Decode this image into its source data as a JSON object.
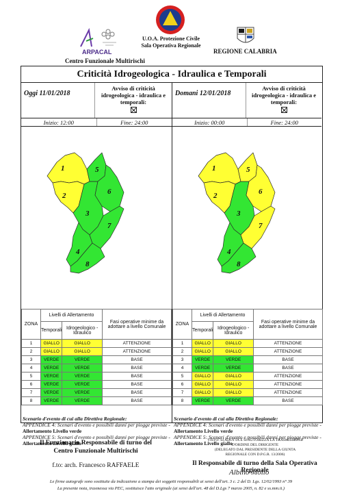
{
  "header": {
    "arpacal": "ARPACAL",
    "centro": "Centro Funzionale Multirischi",
    "uoa_line1": "U.O.A. Protezione Civile",
    "uoa_line2": "Sala Operativa Regionale",
    "regione": "REGIONE CALABRIA"
  },
  "title": "Criticità Idrogeologica - Idraulica e Temporali",
  "days": [
    {
      "label": "Oggi 11/01/2018",
      "avviso": "Avviso di criticità idrogeologica - idraulica e temporali:",
      "start": "Inizio: 12:00",
      "end": "Fine: 24:00",
      "zone_colors": {
        "1": "giallo",
        "2": "giallo",
        "3": "verde",
        "4": "verde",
        "5": "verde",
        "6": "verde",
        "7": "verde",
        "8": "verde"
      }
    },
    {
      "label": "Domani 12/01/2018",
      "avviso": "Avviso di criticità idrogeologica - idraulica e temporali:",
      "start": "Inizio: 00:00",
      "end": "Fine: 24:00",
      "zone_colors": {
        "1": "giallo",
        "2": "giallo",
        "3": "verde",
        "4": "verde",
        "5": "giallo",
        "6": "giallo",
        "7": "giallo",
        "8": "verde"
      }
    }
  ],
  "table_headers": {
    "zona": "ZONA",
    "livelli": "Livelli di Allertamento",
    "fasi": "Fasi operative minime da adottare a livello Comunale",
    "temporali": "Temporali",
    "idro": "Idrogeologico - Idraulico"
  },
  "colors": {
    "giallo": "#ffff33",
    "verde": "#33e633"
  },
  "tables": [
    [
      {
        "zona": "1",
        "temporali": "GIALLO",
        "idro": "GIALLO",
        "fase": "ATTENZIONE"
      },
      {
        "zona": "2",
        "temporali": "GIALLO",
        "idro": "GIALLO",
        "fase": "ATTENZIONE"
      },
      {
        "zona": "3",
        "temporali": "VERDE",
        "idro": "VERDE",
        "fase": "BASE"
      },
      {
        "zona": "4",
        "temporali": "VERDE",
        "idro": "VERDE",
        "fase": "BASE"
      },
      {
        "zona": "5",
        "temporali": "VERDE",
        "idro": "VERDE",
        "fase": "BASE"
      },
      {
        "zona": "6",
        "temporali": "VERDE",
        "idro": "VERDE",
        "fase": "BASE"
      },
      {
        "zona": "7",
        "temporali": "VERDE",
        "idro": "VERDE",
        "fase": "BASE"
      },
      {
        "zona": "8",
        "temporali": "VERDE",
        "idro": "VERDE",
        "fase": "BASE"
      }
    ],
    [
      {
        "zona": "1",
        "temporali": "GIALLO",
        "idro": "GIALLO",
        "fase": "ATTENZIONE"
      },
      {
        "zona": "2",
        "temporali": "GIALLO",
        "idro": "GIALLO",
        "fase": "ATTENZIONE"
      },
      {
        "zona": "3",
        "temporali": "VERDE",
        "idro": "VERDE",
        "fase": "BASE"
      },
      {
        "zona": "4",
        "temporali": "VERDE",
        "idro": "VERDE",
        "fase": "BASE"
      },
      {
        "zona": "5",
        "temporali": "GIALLO",
        "idro": "GIALLO",
        "fase": "ATTENZIONE"
      },
      {
        "zona": "6",
        "temporali": "GIALLO",
        "idro": "GIALLO",
        "fase": "ATTENZIONE"
      },
      {
        "zona": "7",
        "temporali": "GIALLO",
        "idro": "GIALLO",
        "fase": "ATTENZIONE"
      },
      {
        "zona": "8",
        "temporali": "VERDE",
        "idro": "VERDE",
        "fase": "BASE"
      }
    ]
  ],
  "scenario": {
    "title": "Scenario d'evento di cui alla Direttiva Regionale:",
    "app4": "APPENDICE 4: Scenari d'evento e possibili danni per piogge previste -",
    "app4_level": "Allertamento Livello verde",
    "app5": "APPENDICE 5: Scenari d'evento e possibili danni per piogge previste -",
    "app5_level": "Allertamento Livello giallo"
  },
  "footer": {
    "left_line1": "Il Funzionario Responsabile di turno del",
    "left_line2": "Centro Funzionale Multirischi",
    "left_fto": "f.to: arch. Francesco RAFFAELE",
    "right_small1": "VISTO: SI ADOTTA E SI AUTORIZZA LA TRASMISSIONE",
    "right_small2": "D'ORDINE DEL DIRIGENTE",
    "right_small3": "(DELEGATO DAL PRESIDENTE DELLA GIUNTA",
    "right_small4": "REGIONALE CON D.P.G.R. 13/2006)",
    "right_main": "Il Responsabile di turno della Sala Operativa Regionale",
    "signature": "Albino Mollo",
    "note1": "Le firme autografe sono sostituite da indicazione a stampa dei soggetti responsabili ai sensi dell'art. 3 c. 2 del D. Lgs. 12/02/1993 n° 39",
    "note2": "La presente nota, trasmessa via PEC, sostituisce l'atto originale (ai sensi dell'art. 48 del D.Lgs 7 marzo 2005, n. 82 e ss.mm.ii.)"
  }
}
